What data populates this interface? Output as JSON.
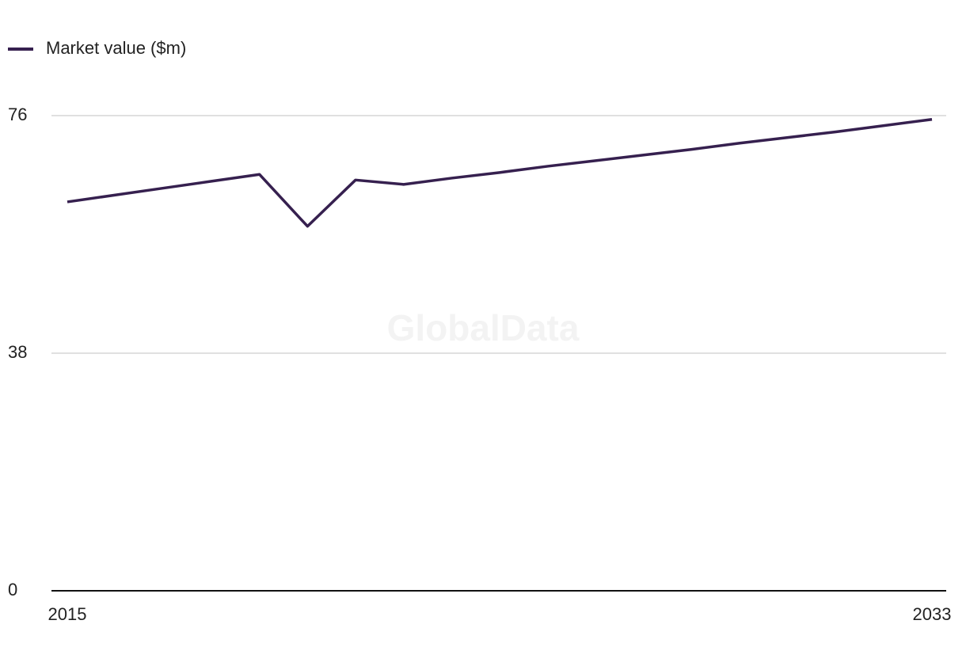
{
  "chart_data": {
    "type": "line",
    "watermark": "GlobalData",
    "x": [
      2015,
      2016,
      2017,
      2018,
      2019,
      2020,
      2021,
      2022,
      2023,
      2024,
      2025,
      2026,
      2027,
      2028,
      2029,
      2030,
      2031,
      2032,
      2033
    ],
    "series": [
      {
        "name": "Market value ($m)",
        "color": "#36204f",
        "values": [
          62.2,
          63.3,
          64.4,
          65.5,
          66.6,
          58.3,
          65.7,
          65.0,
          66.0,
          66.9,
          67.9,
          68.8,
          69.7,
          70.6,
          71.6,
          72.5,
          73.4,
          74.4,
          75.4
        ]
      }
    ],
    "xlim": [
      2015,
      2033
    ],
    "xticks": [
      2015,
      2033
    ],
    "ylim": [
      0,
      76
    ],
    "yticks": [
      0,
      38,
      76
    ],
    "grid": true,
    "legend": "top-left"
  }
}
